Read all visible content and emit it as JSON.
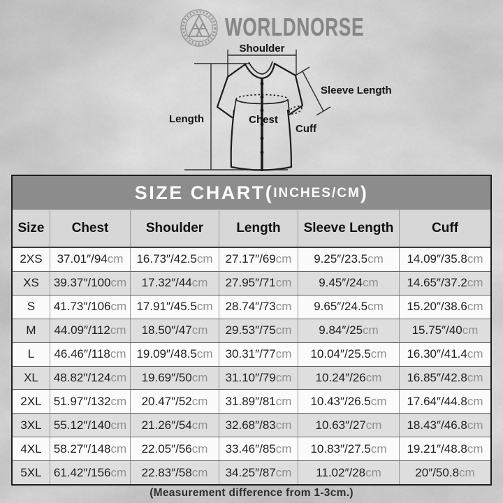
{
  "brand": {
    "name": "WORLDNORSE",
    "logo": "valknut-icon"
  },
  "diagram": {
    "shoulder_label": "Shoulder",
    "sleeve_length_label": "Sleeve Length",
    "length_label": "Length",
    "chest_label": "Chest",
    "cuff_label": "Cuff"
  },
  "size_chart": {
    "title_open": "SIZE CHART(",
    "title_unit": "INCHES/CM",
    "title_close": ")",
    "columns": [
      "Size",
      "Chest",
      "Shoulder",
      "Length",
      "Sleeve Length",
      "Cuff"
    ],
    "rows": [
      [
        "2XS",
        "37.01″/94cm",
        "16.73″/42.5cm",
        "27.17″/69cm",
        "9.25″/23.5cm",
        "14.09″/35.8cm"
      ],
      [
        "XS",
        "39.37″/100cm",
        "17.32″/44cm",
        "27.95″/71cm",
        "9.45″/24cm",
        "14.65″/37.2cm"
      ],
      [
        "S",
        "41.73″/106cm",
        "17.91″/45.5cm",
        "28.74″/73cm",
        "9.65″/24.5cm",
        "15.20″/38.6cm"
      ],
      [
        "M",
        "44.09″/112cm",
        "18.50″/47cm",
        "29.53″/75cm",
        "9.84″/25cm",
        "15.75″/40cm"
      ],
      [
        "L",
        "46.46″/118cm",
        "19.09″/48.5cm",
        "30.31″/77cm",
        "10.04″/25.5cm",
        "16.30″/41.4cm"
      ],
      [
        "XL",
        "48.82″/124cm",
        "19.69″/50cm",
        "31.10″/79cm",
        "10.24″/26cm",
        "16.85″/42.8cm"
      ],
      [
        "2XL",
        "51.97″/132cm",
        "20.47″/52cm",
        "31.89″/81cm",
        "10.43″/26.5cm",
        "17.64″/44.8cm"
      ],
      [
        "3XL",
        "55.12″/140cm",
        "21.26″/54cm",
        "32.68″/83cm",
        "10.63″/27cm",
        "18.43″/46.8cm"
      ],
      [
        "4XL",
        "58.27″/148cm",
        "22.05″/56cm",
        "33.46″/85cm",
        "10.83″/27.5cm",
        "19.21″/48.8cm"
      ],
      [
        "5XL",
        "61.42″/156cm",
        "22.83″/58cm",
        "34.25″/87cm",
        "11.02″/28cm",
        "20″/50.8cm"
      ]
    ],
    "note": "(Measurement difference from 1-3cm.)"
  },
  "colors": {
    "title_bar_bg": "#8c8c8c",
    "header_row_bg": "#d7d7d7",
    "row_bg": "#fbfbfb",
    "row_alt_bg": "#dedede",
    "unit_text": "#909090",
    "line_color": "#1c1c1c",
    "brand_gray": "#8a8a8a"
  }
}
